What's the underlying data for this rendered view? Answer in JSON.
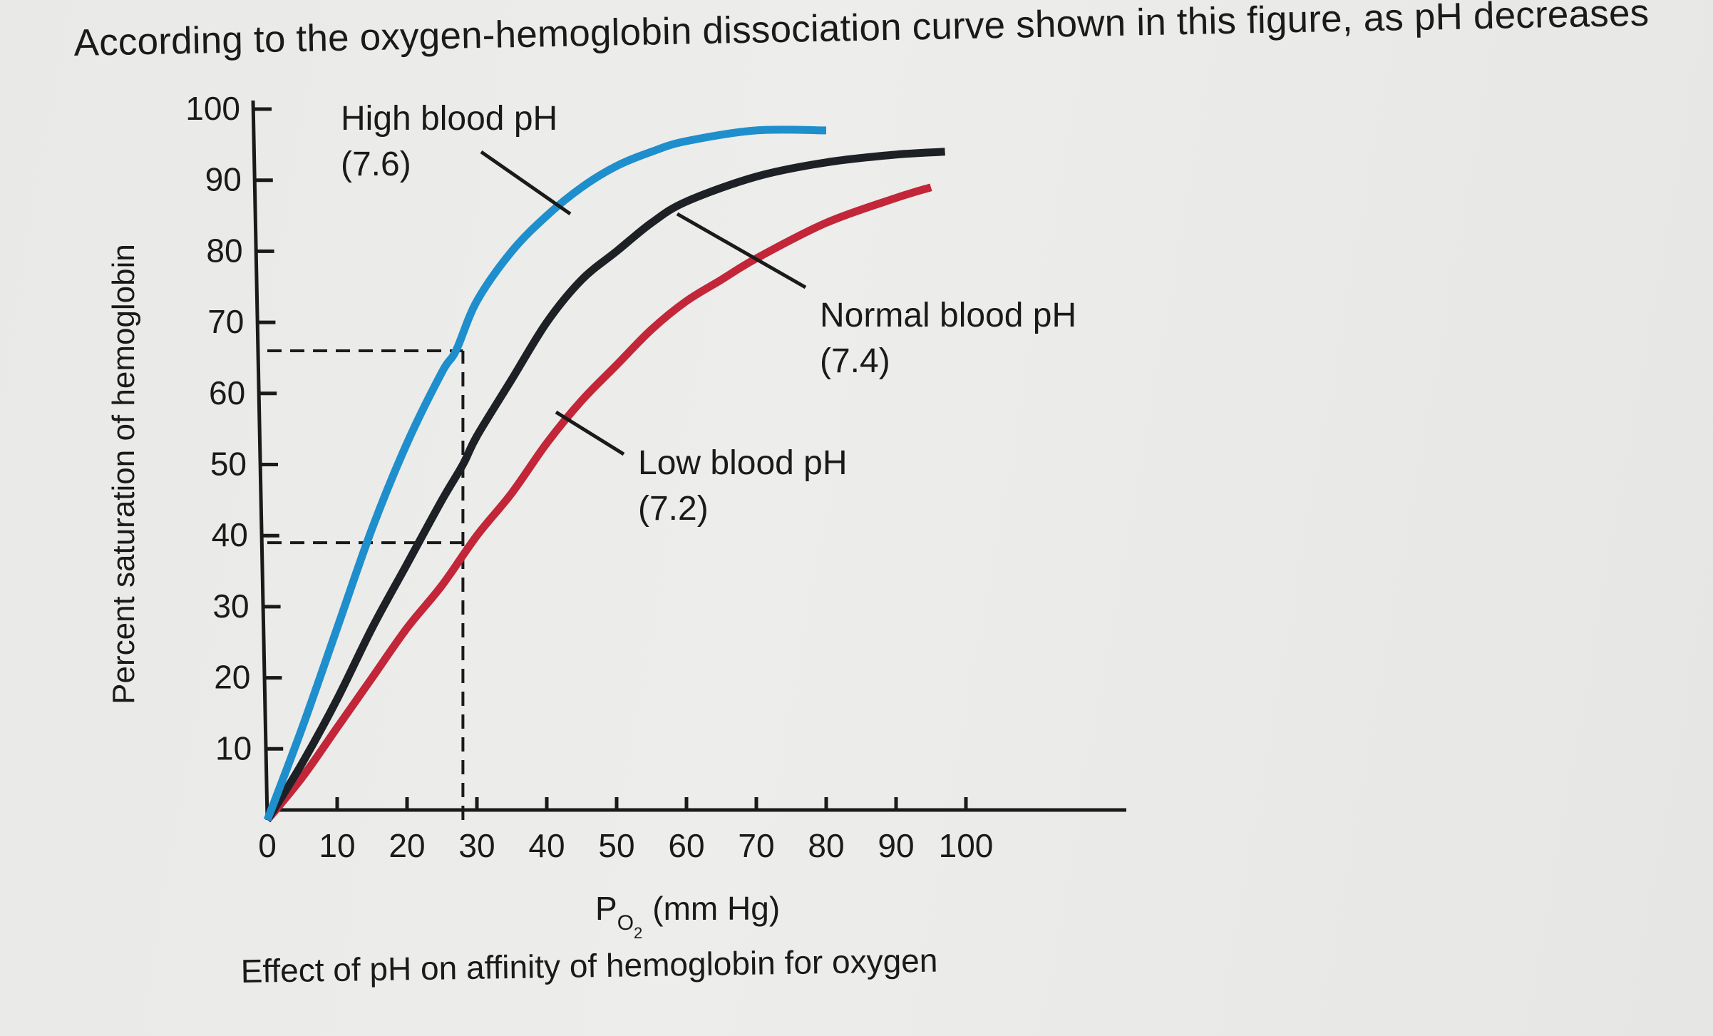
{
  "question": {
    "text": "According to the oxygen-hemoglobin dissociation curve shown in this figure, as pH decreases"
  },
  "chart_data": {
    "type": "line",
    "title": "",
    "caption": "Effect of pH on affinity of hemoglobin for oxygen",
    "xlabel_main": "P",
    "xlabel_sub": "O",
    "xlabel_subsub": "2",
    "xlabel_unit": "(mm Hg)",
    "ylabel": "Percent saturation of hemoglobin",
    "xlim": [
      0,
      100
    ],
    "ylim": [
      0,
      100
    ],
    "xticks": [
      0,
      10,
      20,
      30,
      40,
      50,
      60,
      70,
      80,
      90,
      100
    ],
    "yticks": [
      10,
      20,
      30,
      40,
      50,
      60,
      70,
      80,
      90,
      100
    ],
    "grid": false,
    "series": [
      {
        "name": "High blood pH",
        "sub": "(7.6)",
        "color": "#1e8fcc",
        "x": [
          0,
          5,
          10,
          15,
          20,
          25,
          27,
          30,
          35,
          40,
          45,
          50,
          55,
          60,
          70,
          80
        ],
        "y": [
          0,
          13,
          27,
          41,
          53,
          63,
          66,
          73,
          80,
          85,
          89,
          92,
          94,
          95.5,
          97,
          97
        ]
      },
      {
        "name": "Normal blood pH",
        "sub": "(7.4)",
        "color": "#1d2125",
        "x": [
          0,
          5,
          10,
          15,
          20,
          25,
          28,
          30,
          35,
          40,
          45,
          50,
          55,
          60,
          70,
          80,
          90,
          97
        ],
        "y": [
          0,
          8,
          17,
          27,
          36,
          45,
          50,
          54,
          62,
          70,
          76,
          80,
          84,
          87,
          90.5,
          92.5,
          93.6,
          94
        ]
      },
      {
        "name": "Low blood pH",
        "sub": "(7.2)",
        "color": "#c22638",
        "x": [
          0,
          5,
          10,
          15,
          20,
          25,
          30,
          35,
          40,
          45,
          50,
          55,
          60,
          65,
          70,
          80,
          90,
          95
        ],
        "y": [
          0,
          6,
          13,
          20,
          27,
          33,
          40,
          46,
          53,
          59,
          64,
          69,
          73,
          76,
          79,
          84,
          87.5,
          89
        ]
      }
    ],
    "reference_lines": [
      {
        "y": 66,
        "x_from": 0,
        "x_to": 28
      },
      {
        "y": 39,
        "x_from": 0,
        "x_to": 28
      },
      {
        "x": 28,
        "y_from": 0,
        "y_to": 66
      }
    ]
  }
}
